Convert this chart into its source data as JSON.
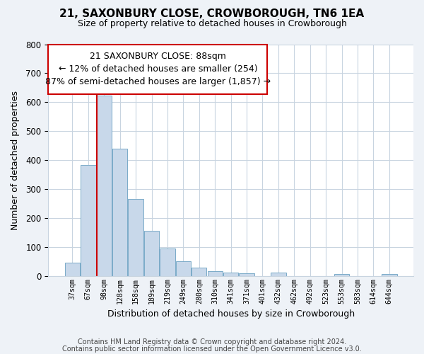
{
  "title": "21, SAXONBURY CLOSE, CROWBOROUGH, TN6 1EA",
  "subtitle": "Size of property relative to detached houses in Crowborough",
  "xlabel": "Distribution of detached houses by size in Crowborough",
  "ylabel": "Number of detached properties",
  "categories": [
    "37sqm",
    "67sqm",
    "98sqm",
    "128sqm",
    "158sqm",
    "189sqm",
    "219sqm",
    "249sqm",
    "280sqm",
    "310sqm",
    "341sqm",
    "371sqm",
    "401sqm",
    "432sqm",
    "462sqm",
    "492sqm",
    "523sqm",
    "553sqm",
    "583sqm",
    "614sqm",
    "644sqm"
  ],
  "values": [
    47,
    383,
    622,
    440,
    265,
    156,
    95,
    50,
    30,
    17,
    12,
    10,
    0,
    12,
    0,
    0,
    0,
    8,
    0,
    0,
    6
  ],
  "bar_color": "#c8d8ea",
  "bar_edge_color": "#7aaac8",
  "property_line_idx": 2,
  "property_line_color": "#cc0000",
  "ann_line1": "21 SAXONBURY CLOSE: 88sqm",
  "ann_line2": "← 12% of detached houses are smaller (254)",
  "ann_line3": "87% of semi-detached houses are larger (1,857) →",
  "ylim": [
    0,
    800
  ],
  "yticks": [
    0,
    100,
    200,
    300,
    400,
    500,
    600,
    700,
    800
  ],
  "footnote_line1": "Contains HM Land Registry data © Crown copyright and database right 2024.",
  "footnote_line2": "Contains public sector information licensed under the Open Government Licence v3.0.",
  "bg_color": "#eef2f7",
  "plot_bg_color": "#ffffff",
  "grid_color": "#c8d4e0",
  "ann_box_color": "#cc0000",
  "title_fontsize": 11,
  "subtitle_fontsize": 9,
  "ann_fontsize": 9,
  "xlabel_fontsize": 9,
  "ylabel_fontsize": 9
}
